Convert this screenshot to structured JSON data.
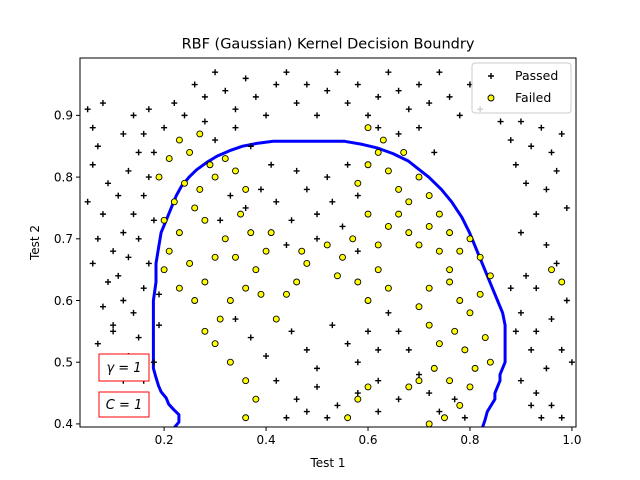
{
  "chart_data": {
    "type": "scatter",
    "title": "RBF (Gaussian)  Kernel Decision Boundry",
    "xlabel": "Test 1",
    "ylabel": "Test 2",
    "xlim": [
      0.035,
      1.008
    ],
    "ylim": [
      0.395,
      0.993
    ],
    "xticks": [
      0.2,
      0.4,
      0.6,
      0.8,
      1.0
    ],
    "xtick_labels": [
      "0.2",
      "0.4",
      "0.6",
      "0.8",
      "1.0"
    ],
    "yticks": [
      0.4,
      0.5,
      0.6,
      0.7,
      0.8,
      0.9
    ],
    "ytick_labels": [
      "0.4",
      "0.5",
      "0.6",
      "0.7",
      "0.8",
      "0.9"
    ],
    "legend": {
      "position": "top-right",
      "entries": [
        {
          "label": "Passed",
          "marker": "plus",
          "color": "#000000"
        },
        {
          "label": "Failed",
          "marker": "circle",
          "color": "#ffff00"
        }
      ]
    },
    "annotations": [
      {
        "text": "γ = 1",
        "x": 0.125,
        "y": 0.49
      },
      {
        "text": "C = 1",
        "x": 0.125,
        "y": 0.43
      }
    ],
    "annotation_box_color": "#ff0000",
    "boundary_color": "#0000ff",
    "decision_boundary": {
      "x": [
        0.219,
        0.229,
        0.229,
        0.219,
        0.209,
        0.204,
        0.194,
        0.189,
        0.184,
        0.179,
        0.179,
        0.179,
        0.179,
        0.179,
        0.184,
        0.184,
        0.189,
        0.194,
        0.204,
        0.214,
        0.224,
        0.234,
        0.249,
        0.264,
        0.284,
        0.304,
        0.329,
        0.354,
        0.384,
        0.414,
        0.449,
        0.484,
        0.519,
        0.554,
        0.589,
        0.619,
        0.649,
        0.679,
        0.699,
        0.719,
        0.744,
        0.764,
        0.784,
        0.799,
        0.814,
        0.829,
        0.844,
        0.854,
        0.864,
        0.869,
        0.869,
        0.859,
        0.859,
        0.849,
        0.849,
        0.834,
        0.829,
        0.824
      ],
      "y": [
        0.393,
        0.403,
        0.415,
        0.423,
        0.432,
        0.442,
        0.452,
        0.462,
        0.475,
        0.49,
        0.51,
        0.54,
        0.57,
        0.6,
        0.63,
        0.66,
        0.685,
        0.71,
        0.73,
        0.75,
        0.77,
        0.785,
        0.8,
        0.812,
        0.824,
        0.834,
        0.843,
        0.85,
        0.855,
        0.858,
        0.858,
        0.858,
        0.858,
        0.858,
        0.853,
        0.847,
        0.838,
        0.826,
        0.813,
        0.8,
        0.78,
        0.76,
        0.735,
        0.71,
        0.68,
        0.65,
        0.62,
        0.6,
        0.58,
        0.56,
        0.5,
        0.48,
        0.47,
        0.45,
        0.44,
        0.42,
        0.405,
        0.393
      ]
    },
    "series": [
      {
        "name": "Passed",
        "marker": "plus",
        "color": "#000000",
        "points": [
          [
            0.05,
            0.91
          ],
          [
            0.06,
            0.88
          ],
          [
            0.07,
            0.85
          ],
          [
            0.08,
            0.92
          ],
          [
            0.06,
            0.82
          ],
          [
            0.09,
            0.79
          ],
          [
            0.05,
            0.76
          ],
          [
            0.08,
            0.74
          ],
          [
            0.07,
            0.7
          ],
          [
            0.1,
            0.68
          ],
          [
            0.06,
            0.66
          ],
          [
            0.09,
            0.63
          ],
          [
            0.08,
            0.59
          ],
          [
            0.1,
            0.56
          ],
          [
            0.07,
            0.53
          ],
          [
            0.09,
            0.5
          ],
          [
            0.1,
            0.55
          ],
          [
            0.12,
            0.6
          ],
          [
            0.11,
            0.64
          ],
          [
            0.13,
            0.67
          ],
          [
            0.12,
            0.71
          ],
          [
            0.14,
            0.74
          ],
          [
            0.11,
            0.77
          ],
          [
            0.13,
            0.81
          ],
          [
            0.15,
            0.84
          ],
          [
            0.12,
            0.87
          ],
          [
            0.14,
            0.9
          ],
          [
            0.17,
            0.91
          ],
          [
            0.16,
            0.87
          ],
          [
            0.18,
            0.84
          ],
          [
            0.17,
            0.8
          ],
          [
            0.16,
            0.77
          ],
          [
            0.18,
            0.73
          ],
          [
            0.15,
            0.7
          ],
          [
            0.17,
            0.66
          ],
          [
            0.16,
            0.62
          ],
          [
            0.14,
            0.58
          ],
          [
            0.15,
            0.54
          ],
          [
            0.13,
            0.51
          ],
          [
            0.12,
            0.47
          ],
          [
            0.11,
            0.44
          ],
          [
            0.14,
            0.44
          ],
          [
            0.16,
            0.47
          ],
          [
            0.18,
            0.5
          ],
          [
            0.19,
            0.56
          ],
          [
            0.19,
            0.61
          ],
          [
            0.2,
            0.88
          ],
          [
            0.22,
            0.92
          ],
          [
            0.24,
            0.9
          ],
          [
            0.26,
            0.95
          ],
          [
            0.28,
            0.93
          ],
          [
            0.3,
            0.97
          ],
          [
            0.32,
            0.94
          ],
          [
            0.34,
            0.91
          ],
          [
            0.36,
            0.96
          ],
          [
            0.38,
            0.93
          ],
          [
            0.4,
            0.9
          ],
          [
            0.42,
            0.95
          ],
          [
            0.44,
            0.97
          ],
          [
            0.46,
            0.92
          ],
          [
            0.48,
            0.95
          ],
          [
            0.5,
            0.9
          ],
          [
            0.52,
            0.94
          ],
          [
            0.54,
            0.97
          ],
          [
            0.56,
            0.92
          ],
          [
            0.58,
            0.95
          ],
          [
            0.6,
            0.9
          ],
          [
            0.62,
            0.93
          ],
          [
            0.64,
            0.97
          ],
          [
            0.66,
            0.94
          ],
          [
            0.68,
            0.91
          ],
          [
            0.7,
            0.95
          ],
          [
            0.72,
            0.92
          ],
          [
            0.74,
            0.97
          ],
          [
            0.76,
            0.93
          ],
          [
            0.78,
            0.9
          ],
          [
            0.8,
            0.95
          ],
          [
            0.82,
            0.91
          ],
          [
            0.84,
            0.93
          ],
          [
            0.86,
            0.89
          ],
          [
            0.88,
            0.86
          ],
          [
            0.9,
            0.89
          ],
          [
            0.92,
            0.85
          ],
          [
            0.94,
            0.88
          ],
          [
            0.96,
            0.84
          ],
          [
            0.98,
            0.87
          ],
          [
            0.97,
            0.81
          ],
          [
            0.95,
            0.78
          ],
          [
            0.99,
            0.75
          ],
          [
            0.93,
            0.74
          ],
          [
            0.91,
            0.79
          ],
          [
            0.89,
            0.82
          ],
          [
            0.9,
            0.71
          ],
          [
            0.95,
            0.69
          ],
          [
            0.97,
            0.66
          ],
          [
            0.99,
            0.6
          ],
          [
            0.96,
            0.57
          ],
          [
            0.93,
            0.55
          ],
          [
            0.98,
            0.52
          ],
          [
            1.0,
            0.5
          ],
          [
            0.95,
            0.49
          ],
          [
            0.92,
            0.52
          ],
          [
            0.9,
            0.58
          ],
          [
            0.88,
            0.62
          ],
          [
            0.91,
            0.64
          ],
          [
            0.93,
            0.62
          ],
          [
            0.89,
            0.55
          ],
          [
            0.9,
            0.47
          ],
          [
            0.93,
            0.45
          ],
          [
            0.96,
            0.43
          ],
          [
            0.98,
            0.41
          ],
          [
            0.94,
            0.41
          ],
          [
            0.92,
            0.43
          ],
          [
            0.34,
            0.88
          ],
          [
            0.37,
            0.85
          ],
          [
            0.3,
            0.86
          ],
          [
            0.28,
            0.89
          ],
          [
            0.62,
            0.88
          ],
          [
            0.66,
            0.87
          ],
          [
            0.7,
            0.88
          ],
          [
            0.73,
            0.84
          ],
          [
            0.31,
            0.73
          ],
          [
            0.33,
            0.77
          ],
          [
            0.36,
            0.75
          ],
          [
            0.39,
            0.78
          ],
          [
            0.42,
            0.76
          ],
          [
            0.45,
            0.73
          ],
          [
            0.48,
            0.78
          ],
          [
            0.5,
            0.74
          ],
          [
            0.53,
            0.76
          ],
          [
            0.55,
            0.72
          ],
          [
            0.58,
            0.77
          ],
          [
            0.52,
            0.8
          ],
          [
            0.46,
            0.81
          ],
          [
            0.41,
            0.82
          ],
          [
            0.56,
            0.82
          ],
          [
            0.44,
            0.69
          ],
          [
            0.5,
            0.7
          ],
          [
            0.58,
            0.68
          ],
          [
            0.34,
            0.57
          ],
          [
            0.37,
            0.54
          ],
          [
            0.4,
            0.51
          ],
          [
            0.45,
            0.55
          ],
          [
            0.48,
            0.52
          ],
          [
            0.5,
            0.49
          ],
          [
            0.53,
            0.56
          ],
          [
            0.56,
            0.53
          ],
          [
            0.58,
            0.5
          ],
          [
            0.6,
            0.55
          ],
          [
            0.62,
            0.52
          ],
          [
            0.64,
            0.58
          ],
          [
            0.66,
            0.55
          ],
          [
            0.68,
            0.52
          ],
          [
            0.42,
            0.47
          ],
          [
            0.46,
            0.44
          ],
          [
            0.5,
            0.46
          ],
          [
            0.54,
            0.43
          ],
          [
            0.58,
            0.45
          ],
          [
            0.62,
            0.42
          ],
          [
            0.66,
            0.44
          ],
          [
            0.44,
            0.41
          ],
          [
            0.48,
            0.42
          ],
          [
            0.52,
            0.41
          ],
          [
            0.62,
            0.47
          ],
          [
            0.7,
            0.48
          ],
          [
            0.72,
            0.45
          ],
          [
            0.74,
            0.42
          ],
          [
            0.77,
            0.44
          ],
          [
            0.79,
            0.41
          ]
        ]
      },
      {
        "name": "Failed",
        "marker": "circle",
        "color": "#ffff00",
        "points": [
          [
            0.19,
            0.8
          ],
          [
            0.21,
            0.83
          ],
          [
            0.23,
            0.86
          ],
          [
            0.25,
            0.84
          ],
          [
            0.27,
            0.87
          ],
          [
            0.29,
            0.82
          ],
          [
            0.24,
            0.79
          ],
          [
            0.22,
            0.76
          ],
          [
            0.2,
            0.73
          ],
          [
            0.26,
            0.75
          ],
          [
            0.23,
            0.71
          ],
          [
            0.21,
            0.68
          ],
          [
            0.25,
            0.66
          ],
          [
            0.2,
            0.65
          ],
          [
            0.23,
            0.62
          ],
          [
            0.26,
            0.6
          ],
          [
            0.28,
            0.63
          ],
          [
            0.3,
            0.67
          ],
          [
            0.32,
            0.7
          ],
          [
            0.28,
            0.73
          ],
          [
            0.27,
            0.78
          ],
          [
            0.3,
            0.8
          ],
          [
            0.32,
            0.83
          ],
          [
            0.34,
            0.81
          ],
          [
            0.36,
            0.78
          ],
          [
            0.35,
            0.74
          ],
          [
            0.37,
            0.71
          ],
          [
            0.34,
            0.67
          ],
          [
            0.38,
            0.65
          ],
          [
            0.4,
            0.68
          ],
          [
            0.41,
            0.71
          ],
          [
            0.39,
            0.61
          ],
          [
            0.36,
            0.62
          ],
          [
            0.33,
            0.6
          ],
          [
            0.31,
            0.57
          ],
          [
            0.28,
            0.55
          ],
          [
            0.3,
            0.53
          ],
          [
            0.33,
            0.5
          ],
          [
            0.36,
            0.47
          ],
          [
            0.38,
            0.44
          ],
          [
            0.36,
            0.41
          ],
          [
            0.39,
            0.39
          ],
          [
            0.42,
            0.57
          ],
          [
            0.44,
            0.61
          ],
          [
            0.46,
            0.63
          ],
          [
            0.48,
            0.66
          ],
          [
            0.47,
            0.68
          ],
          [
            0.52,
            0.69
          ],
          [
            0.55,
            0.67
          ],
          [
            0.54,
            0.64
          ],
          [
            0.57,
            0.7
          ],
          [
            0.58,
            0.79
          ],
          [
            0.6,
            0.82
          ],
          [
            0.62,
            0.84
          ],
          [
            0.64,
            0.81
          ],
          [
            0.66,
            0.78
          ],
          [
            0.68,
            0.76
          ],
          [
            0.7,
            0.8
          ],
          [
            0.72,
            0.77
          ],
          [
            0.66,
            0.74
          ],
          [
            0.68,
            0.71
          ],
          [
            0.7,
            0.69
          ],
          [
            0.72,
            0.72
          ],
          [
            0.74,
            0.74
          ],
          [
            0.76,
            0.71
          ],
          [
            0.74,
            0.68
          ],
          [
            0.76,
            0.65
          ],
          [
            0.78,
            0.68
          ],
          [
            0.8,
            0.7
          ],
          [
            0.82,
            0.67
          ],
          [
            0.84,
            0.64
          ],
          [
            0.82,
            0.61
          ],
          [
            0.8,
            0.58
          ],
          [
            0.78,
            0.6
          ],
          [
            0.76,
            0.63
          ],
          [
            0.72,
            0.62
          ],
          [
            0.7,
            0.59
          ],
          [
            0.72,
            0.56
          ],
          [
            0.74,
            0.53
          ],
          [
            0.77,
            0.55
          ],
          [
            0.79,
            0.52
          ],
          [
            0.81,
            0.49
          ],
          [
            0.83,
            0.54
          ],
          [
            0.84,
            0.5
          ],
          [
            0.8,
            0.46
          ],
          [
            0.78,
            0.43
          ],
          [
            0.75,
            0.41
          ],
          [
            0.72,
            0.4
          ],
          [
            0.7,
            0.47
          ],
          [
            0.73,
            0.49
          ],
          [
            0.76,
            0.47
          ],
          [
            0.68,
            0.46
          ],
          [
            0.6,
            0.88
          ],
          [
            0.63,
            0.86
          ],
          [
            0.67,
            0.84
          ],
          [
            0.64,
            0.72
          ],
          [
            0.6,
            0.74
          ],
          [
            0.62,
            0.69
          ],
          [
            0.58,
            0.63
          ],
          [
            0.6,
            0.6
          ],
          [
            0.62,
            0.65
          ],
          [
            0.64,
            0.62
          ],
          [
            0.56,
            0.41
          ],
          [
            0.58,
            0.44
          ],
          [
            0.6,
            0.46
          ],
          [
            0.96,
            0.65
          ],
          [
            0.98,
            0.63
          ]
        ]
      }
    ]
  }
}
